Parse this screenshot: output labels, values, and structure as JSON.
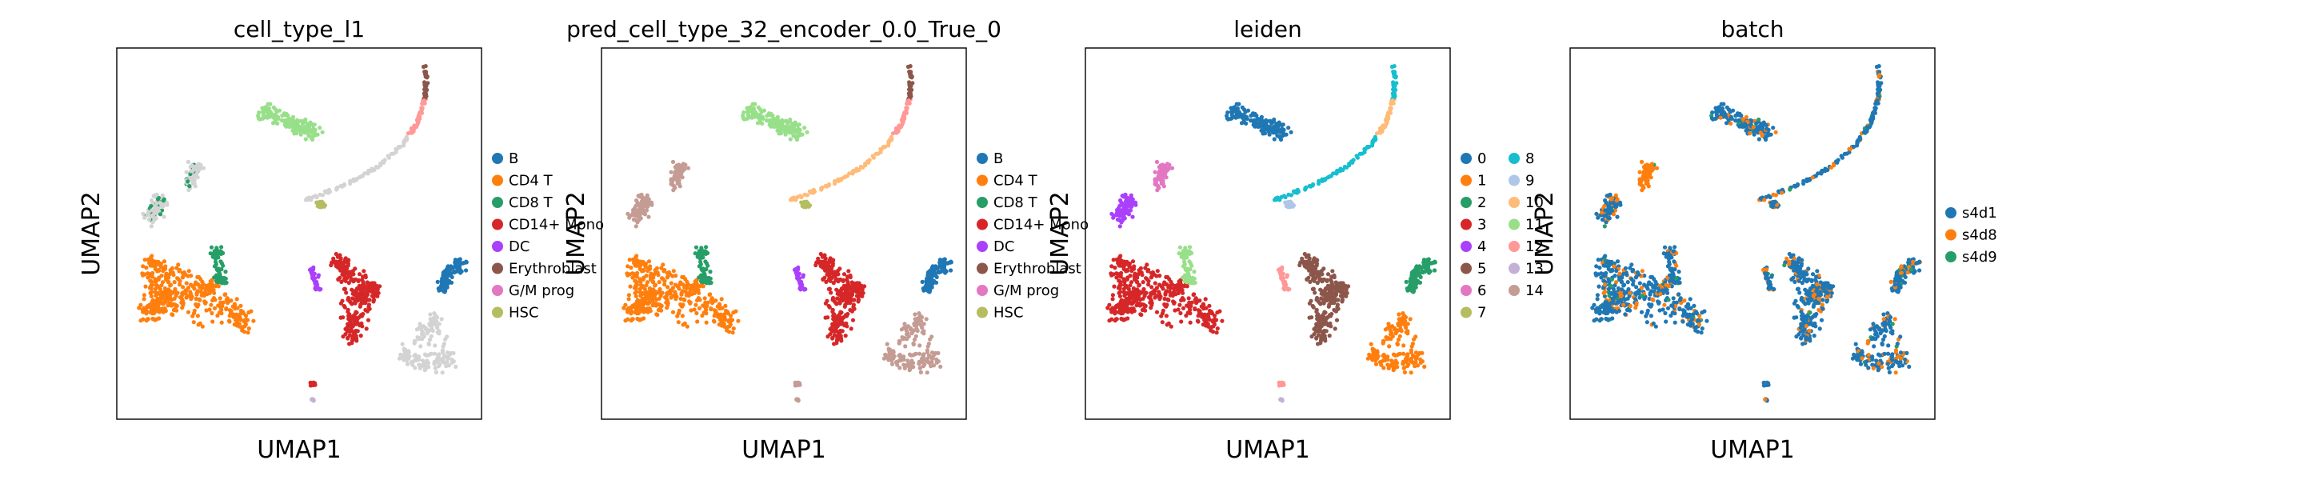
{
  "chart_data": [
    {
      "type": "scatter",
      "title": "cell_type_l1",
      "xlabel": "UMAP1",
      "ylabel": "UMAP2",
      "color_by": "categorical",
      "legend_position": "right",
      "legend": [
        {
          "label": "B",
          "color": "#1f77b4"
        },
        {
          "label": "CD4 T",
          "color": "#ff7f0e"
        },
        {
          "label": "CD8 T",
          "color": "#279e68"
        },
        {
          "label": "CD14+ Mono",
          "color": "#d62728"
        },
        {
          "label": "DC",
          "color": "#aa40fc"
        },
        {
          "label": "Erythroblast",
          "color": "#8c564b"
        },
        {
          "label": "G/M prog",
          "color": "#e377c2"
        },
        {
          "label": "HSC",
          "color": "#b5bd61"
        }
      ]
    },
    {
      "type": "scatter",
      "title": "pred_cell_type_32_encoder_0.0_True_0",
      "xlabel": "UMAP1",
      "ylabel": "UMAP2",
      "color_by": "categorical",
      "legend_position": "right",
      "legend": [
        {
          "label": "B",
          "color": "#1f77b4"
        },
        {
          "label": "CD4 T",
          "color": "#ff7f0e"
        },
        {
          "label": "CD8 T",
          "color": "#279e68"
        },
        {
          "label": "CD14+ Mono",
          "color": "#d62728"
        },
        {
          "label": "DC",
          "color": "#aa40fc"
        },
        {
          "label": "Erythroblast",
          "color": "#8c564b"
        },
        {
          "label": "G/M prog",
          "color": "#e377c2"
        },
        {
          "label": "HSC",
          "color": "#b5bd61"
        }
      ]
    },
    {
      "type": "scatter",
      "title": "leiden",
      "xlabel": "UMAP1",
      "ylabel": "UMAP2",
      "color_by": "categorical",
      "legend_position": "right",
      "legend_columns": 2,
      "legend": [
        {
          "label": "0",
          "color": "#1f77b4"
        },
        {
          "label": "1",
          "color": "#ff7f0e"
        },
        {
          "label": "2",
          "color": "#279e68"
        },
        {
          "label": "3",
          "color": "#d62728"
        },
        {
          "label": "4",
          "color": "#aa40fc"
        },
        {
          "label": "5",
          "color": "#8c564b"
        },
        {
          "label": "6",
          "color": "#e377c2"
        },
        {
          "label": "7",
          "color": "#b5bd61"
        },
        {
          "label": "8",
          "color": "#17becf"
        },
        {
          "label": "9",
          "color": "#aec7e8"
        },
        {
          "label": "10",
          "color": "#ffbb78"
        },
        {
          "label": "11",
          "color": "#98df8a"
        },
        {
          "label": "12",
          "color": "#ff9896"
        },
        {
          "label": "13",
          "color": "#c5b0d5"
        },
        {
          "label": "14",
          "color": "#c49c94"
        }
      ]
    },
    {
      "type": "scatter",
      "title": "batch",
      "xlabel": "UMAP1",
      "ylabel": "UMAP2",
      "color_by": "categorical",
      "legend_position": "right",
      "legend": [
        {
          "label": "s4d1",
          "color": "#1f77b4"
        },
        {
          "label": "s4d8",
          "color": "#ff7f0e"
        },
        {
          "label": "s4d9",
          "color": "#279e68"
        }
      ]
    }
  ]
}
